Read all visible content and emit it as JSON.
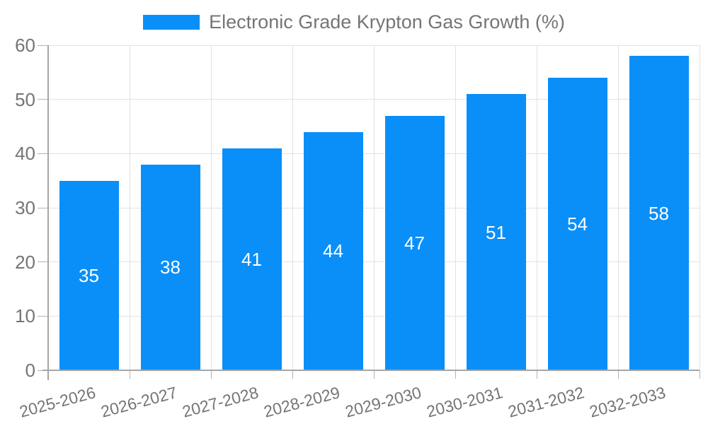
{
  "chart_data": {
    "type": "bar",
    "title": "Electronic Grade Krypton Gas Growth (%)",
    "categories": [
      "2025-2026",
      "2026-2027",
      "2027-2028",
      "2028-2029",
      "2029-2030",
      "2030-2031",
      "2031-2032",
      "2032-2033"
    ],
    "values": [
      35,
      38,
      41,
      44,
      47,
      51,
      54,
      58
    ],
    "series_name": "Electronic Grade Krypton Gas Growth (%)",
    "ylim": [
      0,
      60
    ],
    "ytick_step": 10,
    "yticks": [
      0,
      10,
      20,
      30,
      40,
      50,
      60
    ],
    "grid": true,
    "legend_position": "top-center",
    "x_label_rotation_deg": -15,
    "value_labels_shown": true,
    "colors": {
      "bar": "#0a8ff8",
      "value_label": "#ffffff",
      "text": "#757575",
      "grid": "#e2e2e2",
      "tick": "#b3b3b3",
      "axis": "#a6a6a6",
      "background": "#ffffff"
    }
  }
}
